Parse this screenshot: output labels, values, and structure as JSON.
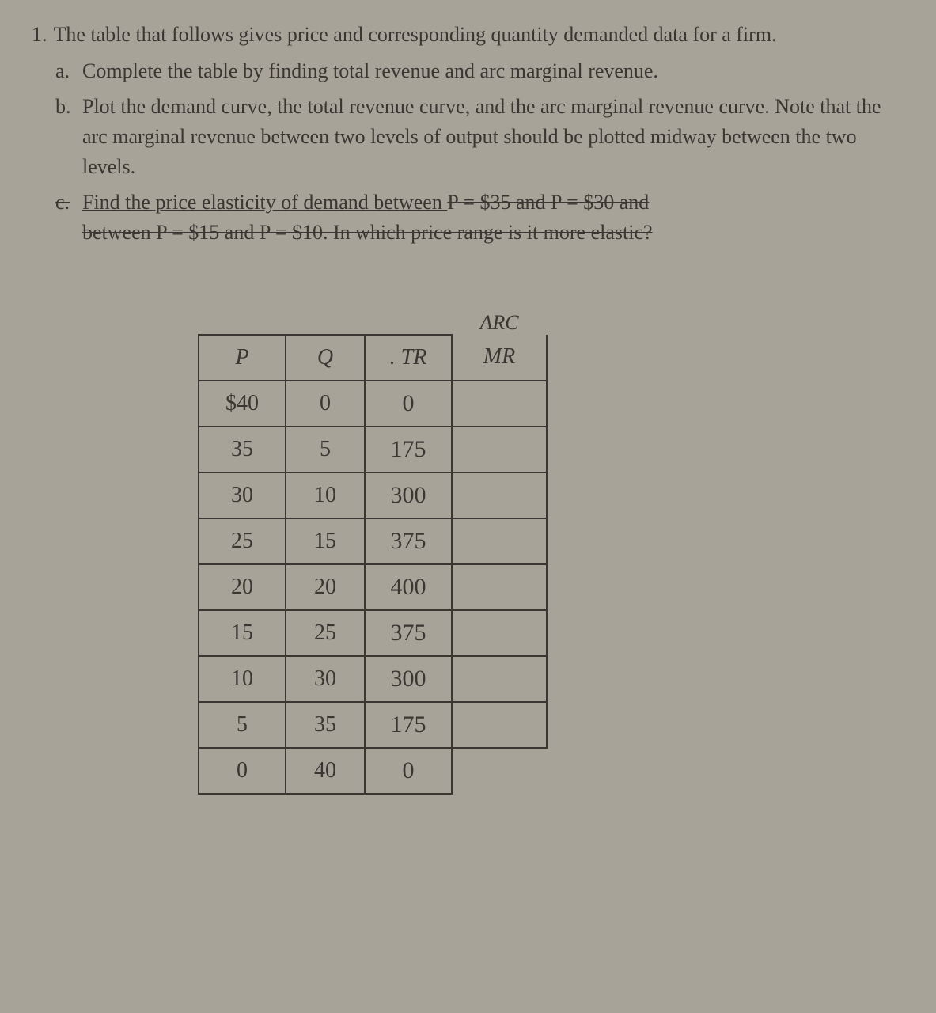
{
  "question": {
    "number": "1.",
    "intro": "The table that follows gives price and corresponding quantity demanded data for a firm.",
    "parts": {
      "a": {
        "letter": "a.",
        "text": "Complete the table by finding total revenue and arc marginal revenue."
      },
      "b": {
        "letter": "b.",
        "text": "Plot the demand curve, the total revenue curve, and the arc marginal revenue curve. Note that the arc marginal revenue between two levels of output should be plotted midway between the two levels."
      },
      "c": {
        "letter": "c.",
        "part1": "Find the price elasticity of demand between ",
        "strike1": "P = $35 and P = $30 and",
        "part2_line2_strike": "between P = $15 and P = $10. In which price range is it more elastic?"
      }
    }
  },
  "table": {
    "headers": {
      "p": "P",
      "q": "Q",
      "tr": "TR",
      "arc": "ARC",
      "mr": "MR"
    },
    "rows": [
      {
        "p": "$40",
        "q": "0",
        "tr": "0",
        "mr": ""
      },
      {
        "p": "35",
        "q": "5",
        "tr": "175",
        "mr": ""
      },
      {
        "p": "30",
        "q": "10",
        "tr": "300",
        "mr": ""
      },
      {
        "p": "25",
        "q": "15",
        "tr": "375",
        "mr": ""
      },
      {
        "p": "20",
        "q": "20",
        "tr": "400",
        "mr": ""
      },
      {
        "p": "15",
        "q": "25",
        "tr": "375",
        "mr": ""
      },
      {
        "p": "10",
        "q": "30",
        "tr": "300",
        "mr": ""
      },
      {
        "p": "5",
        "q": "35",
        "tr": "175",
        "mr": ""
      },
      {
        "p": "0",
        "q": "40",
        "tr": "0",
        "mr": ""
      }
    ]
  },
  "colors": {
    "background": "#a8a399",
    "text": "#3a3632",
    "border": "#3a3632"
  }
}
